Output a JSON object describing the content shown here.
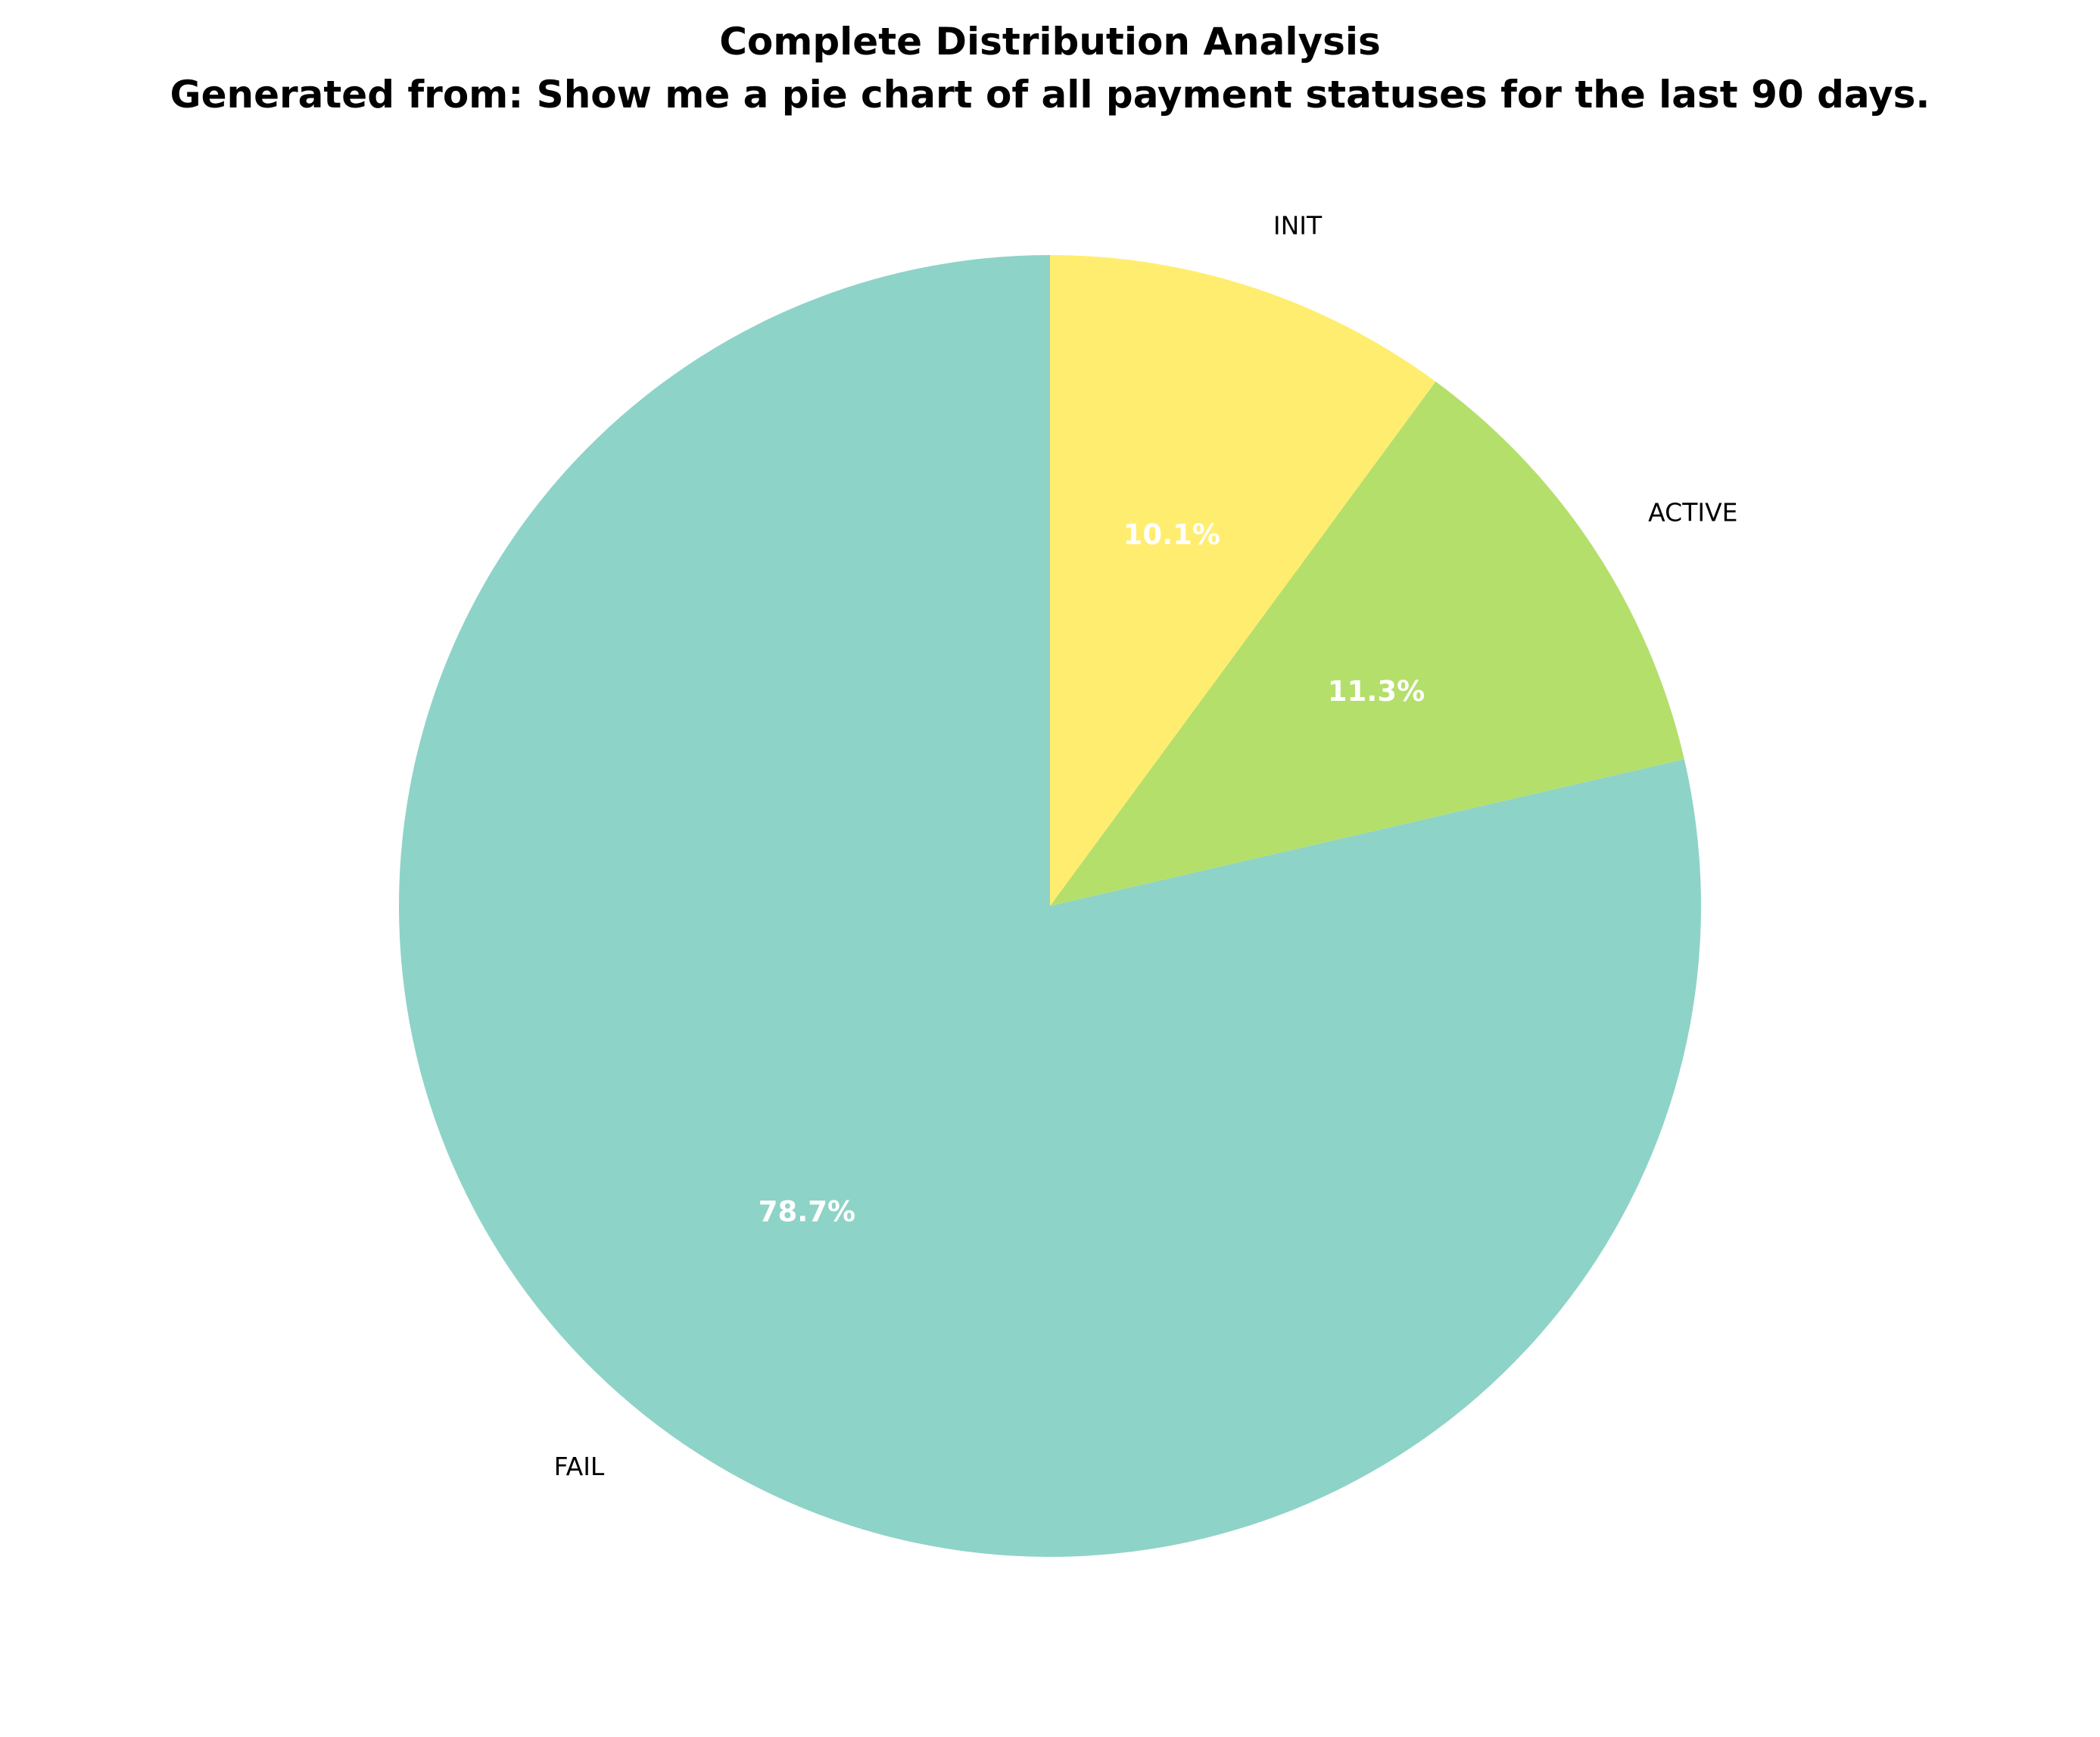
{
  "chart_data": {
    "type": "pie",
    "title": "Complete Distribution Analysis",
    "subtitle": "Generated from: Show me a pie chart of all payment statuses for the last 90 days.",
    "labels": [
      "FAIL",
      "ACTIVE",
      "INIT"
    ],
    "values": [
      78.7,
      11.3,
      10.1
    ],
    "percent_labels": [
      "78.7%",
      "11.3%",
      "10.1%"
    ],
    "colors": [
      "#8ed3c7",
      "#b4df6b",
      "#ffed6f"
    ],
    "start_angle_deg": 90,
    "direction": "counterclockwise",
    "legend": "none"
  }
}
